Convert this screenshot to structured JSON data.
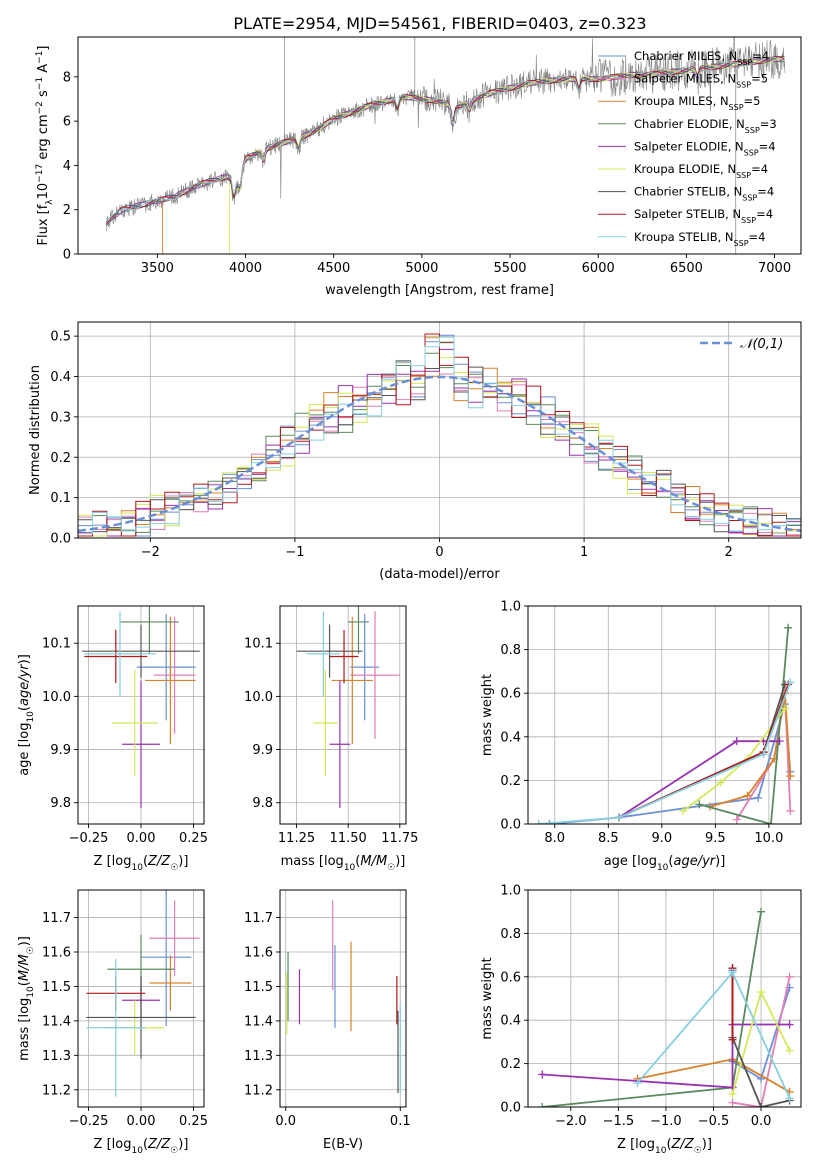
{
  "figure": {
    "title": "PLATE=2954, MJD=54561, FIBERID=0403, z=0.323"
  },
  "models": [
    {
      "name": "Chabrier MILES",
      "nssp": "4",
      "color": "#6b8fd6"
    },
    {
      "name": "Salpeter MILES",
      "nssp": "5",
      "color": "#e17fb4"
    },
    {
      "name": "Kroupa MILES",
      "nssp": "5",
      "color": "#d9822b"
    },
    {
      "name": "Chabrier ELODIE",
      "nssp": "3",
      "color": "#5a8a5e"
    },
    {
      "name": "Salpeter ELODIE",
      "nssp": "4",
      "color": "#9932b0"
    },
    {
      "name": "Kroupa ELODIE",
      "nssp": "4",
      "color": "#d4e85a"
    },
    {
      "name": "Chabrier STELIB",
      "nssp": "4",
      "color": "#555555"
    },
    {
      "name": "Salpeter STELIB",
      "nssp": "4",
      "color": "#b01818"
    },
    {
      "name": "Kroupa STELIB",
      "nssp": "4",
      "color": "#86cfe0"
    }
  ],
  "chart_data": [
    {
      "id": "spectrum",
      "type": "line",
      "xlabel": "wavelength [Angstrom, rest frame]",
      "ylabel": "Flux [f_λ 10^-17 erg cm^-2 s^-1 A^-1]",
      "xlim": [
        3050,
        7150
      ],
      "ylim": [
        0,
        9.8
      ],
      "xticks": [
        3500,
        4000,
        4500,
        5000,
        5500,
        6000,
        6500,
        7000
      ],
      "yticks": [
        0,
        2,
        4,
        6,
        8
      ],
      "grid": false,
      "legend": "top-right",
      "data_color": "#808080",
      "continuum": [
        [
          3210,
          1.4
        ],
        [
          3300,
          2.0
        ],
        [
          3400,
          2.2
        ],
        [
          3500,
          2.4
        ],
        [
          3600,
          2.6
        ],
        [
          3700,
          3.0
        ],
        [
          3800,
          3.3
        ],
        [
          3900,
          3.5
        ],
        [
          3950,
          3.2
        ],
        [
          4000,
          4.3
        ],
        [
          4100,
          4.7
        ],
        [
          4200,
          5.0
        ],
        [
          4300,
          5.2
        ],
        [
          4400,
          5.6
        ],
        [
          4500,
          6.1
        ],
        [
          4600,
          6.4
        ],
        [
          4700,
          6.7
        ],
        [
          4800,
          6.9
        ],
        [
          4900,
          7.1
        ],
        [
          5000,
          7.0
        ],
        [
          5100,
          6.9
        ],
        [
          5200,
          6.6
        ],
        [
          5300,
          7.0
        ],
        [
          5400,
          7.3
        ],
        [
          5500,
          7.5
        ],
        [
          5600,
          7.7
        ],
        [
          5700,
          7.8
        ],
        [
          5800,
          7.9
        ],
        [
          5900,
          7.9
        ],
        [
          6000,
          7.9
        ],
        [
          6100,
          8.0
        ],
        [
          6200,
          8.1
        ],
        [
          6300,
          8.1
        ],
        [
          6400,
          8.2
        ],
        [
          6500,
          8.3
        ],
        [
          6600,
          8.4
        ],
        [
          6700,
          8.5
        ],
        [
          6800,
          8.6
        ],
        [
          6900,
          8.7
        ],
        [
          7000,
          8.8
        ],
        [
          7060,
          8.8
        ]
      ]
    },
    {
      "id": "residuals",
      "type": "histogram",
      "xlabel": "(data-model)/error",
      "ylabel": "Normed distribution",
      "xlim": [
        -2.5,
        2.5
      ],
      "ylim": [
        0,
        0.535
      ],
      "xticks": [
        -2,
        -1,
        0,
        1,
        2
      ],
      "yticks": [
        0.0,
        0.1,
        0.2,
        0.3,
        0.4,
        0.5
      ],
      "grid": true,
      "legend": "top-right",
      "reference_label": "𝒩(0,1)",
      "reference_color": "#6b8fd6",
      "bin_start": -2.5,
      "bin_width": 0.1
    },
    {
      "id": "age-vs-Z",
      "type": "errorbar",
      "xlabel": "Z [log10(Z/Z☉)]",
      "ylabel": "age [log10(age/yr)]",
      "xlim": [
        -0.3,
        0.3
      ],
      "ylim": [
        9.76,
        10.17
      ],
      "xticks": [
        -0.25,
        0.0,
        0.25
      ],
      "yticks": [
        9.8,
        9.9,
        10.0,
        10.1
      ],
      "grid": true,
      "points": [
        {
          "model": 0,
          "x": 0.12,
          "xerr": 0.14,
          "y": 10.055,
          "yerr": 0.1
        },
        {
          "model": 1,
          "x": 0.16,
          "xerr": 0.1,
          "y": 10.04,
          "yerr": 0.11
        },
        {
          "model": 2,
          "x": 0.14,
          "xerr": 0.12,
          "y": 10.03,
          "yerr": 0.12
        },
        {
          "model": 3,
          "x": 0.04,
          "xerr": 0.14,
          "y": 10.14,
          "yerr": 0.06
        },
        {
          "model": 4,
          "x": 0.0,
          "xerr": 0.09,
          "y": 9.91,
          "yerr": 0.12
        },
        {
          "model": 5,
          "x": -0.03,
          "xerr": 0.11,
          "y": 9.95,
          "yerr": 0.1
        },
        {
          "model": 6,
          "x": 0.0,
          "xerr": 0.28,
          "y": 10.085,
          "yerr": 0.05
        },
        {
          "model": 7,
          "x": -0.12,
          "xerr": 0.15,
          "y": 10.075,
          "yerr": 0.05
        },
        {
          "model": 8,
          "x": -0.1,
          "xerr": 0.17,
          "y": 10.08,
          "yerr": 0.08
        }
      ]
    },
    {
      "id": "age-vs-mass",
      "type": "errorbar",
      "xlabel": "mass [log10(M/M☉)]",
      "ylabel": "",
      "xlim": [
        11.17,
        11.78
      ],
      "ylim": [
        9.76,
        10.17
      ],
      "xticks": [
        11.25,
        11.5,
        11.75
      ],
      "yticks": [
        9.8,
        9.9,
        10.0,
        10.1
      ],
      "grid": true,
      "points": [
        {
          "model": 0,
          "x": 11.58,
          "xerr": 0.07,
          "y": 10.055,
          "yerr": 0.1
        },
        {
          "model": 1,
          "x": 11.63,
          "xerr": 0.12,
          "y": 10.04,
          "yerr": 0.12
        },
        {
          "model": 2,
          "x": 11.52,
          "xerr": 0.1,
          "y": 10.03,
          "yerr": 0.12
        },
        {
          "model": 3,
          "x": 11.55,
          "xerr": 0.05,
          "y": 10.14,
          "yerr": 0.06
        },
        {
          "model": 4,
          "x": 11.46,
          "xerr": 0.05,
          "y": 9.91,
          "yerr": 0.12
        },
        {
          "model": 5,
          "x": 11.39,
          "xerr": 0.06,
          "y": 9.95,
          "yerr": 0.1
        },
        {
          "model": 6,
          "x": 11.41,
          "xerr": 0.16,
          "y": 10.085,
          "yerr": 0.05
        },
        {
          "model": 7,
          "x": 11.48,
          "xerr": 0.07,
          "y": 10.075,
          "yerr": 0.05
        },
        {
          "model": 8,
          "x": 11.38,
          "xerr": 0.08,
          "y": 10.08,
          "yerr": 0.08
        }
      ]
    },
    {
      "id": "weight-vs-age",
      "type": "line",
      "xlabel": "age [log10(age/yr)]",
      "ylabel": "mass weight",
      "xlim": [
        7.75,
        10.3
      ],
      "ylim": [
        0,
        1.0
      ],
      "xticks": [
        8.0,
        8.5,
        9.0,
        9.5,
        10.0
      ],
      "yticks": [
        0.0,
        0.2,
        0.4,
        0.6,
        0.8,
        1.0
      ],
      "grid": true,
      "series": [
        {
          "model": 0,
          "points": [
            [
              7.95,
              0.0
            ],
            [
              8.6,
              0.03
            ],
            [
              9.9,
              0.12
            ],
            [
              10.15,
              0.55
            ],
            [
              10.2,
              0.24
            ]
          ]
        },
        {
          "model": 1,
          "points": [
            [
              9.7,
              0.02
            ],
            [
              10.05,
              0.3
            ],
            [
              10.15,
              0.6
            ],
            [
              10.2,
              0.06
            ]
          ]
        },
        {
          "model": 2,
          "points": [
            [
              9.45,
              0.08
            ],
            [
              9.8,
              0.13
            ],
            [
              10.05,
              0.3
            ],
            [
              10.15,
              0.6
            ],
            [
              10.2,
              0.22
            ]
          ]
        },
        {
          "model": 3,
          "points": [
            [
              9.35,
              0.09
            ],
            [
              10.02,
              0.0
            ],
            [
              10.18,
              0.9
            ]
          ]
        },
        {
          "model": 4,
          "points": [
            [
              8.6,
              0.03
            ],
            [
              9.7,
              0.38
            ],
            [
              9.95,
              0.38
            ],
            [
              10.1,
              0.38
            ]
          ]
        },
        {
          "model": 5,
          "points": [
            [
              9.2,
              0.06
            ],
            [
              9.55,
              0.19
            ],
            [
              9.8,
              0.3
            ],
            [
              10.15,
              0.53
            ]
          ]
        },
        {
          "model": 6,
          "points": [
            [
              8.6,
              0.03
            ],
            [
              9.95,
              0.33
            ],
            [
              10.15,
              0.64
            ]
          ]
        },
        {
          "model": 7,
          "points": [
            [
              8.6,
              0.03
            ],
            [
              9.95,
              0.33
            ],
            [
              10.18,
              0.64
            ]
          ]
        },
        {
          "model": 8,
          "points": [
            [
              7.85,
              0.0
            ],
            [
              8.6,
              0.03
            ],
            [
              9.95,
              0.32
            ],
            [
              10.2,
              0.65
            ]
          ]
        }
      ]
    },
    {
      "id": "mass-vs-Z",
      "type": "errorbar",
      "xlabel": "Z [log10(Z/Z☉)]",
      "ylabel": "mass [log10(M/M☉)]",
      "xlim": [
        -0.3,
        0.3
      ],
      "ylim": [
        11.15,
        11.78
      ],
      "xticks": [
        -0.25,
        0.0,
        0.25
      ],
      "yticks": [
        11.2,
        11.3,
        11.4,
        11.5,
        11.6,
        11.7
      ],
      "grid": true,
      "points": [
        {
          "model": 0,
          "x": 0.12,
          "xerr": 0.12,
          "y": 11.585,
          "yerr": 0.2
        },
        {
          "model": 1,
          "x": 0.16,
          "xerr": 0.12,
          "y": 11.64,
          "yerr": 0.11
        },
        {
          "model": 2,
          "x": 0.14,
          "xerr": 0.1,
          "y": 11.51,
          "yerr": 0.08
        },
        {
          "model": 3,
          "x": 0.0,
          "xerr": 0.16,
          "y": 11.55,
          "yerr": 0.1
        },
        {
          "model": 4,
          "x": 0.0,
          "xerr": 0.09,
          "y": 11.46,
          "yerr": 0.05
        },
        {
          "model": 5,
          "x": -0.03,
          "xerr": 0.14,
          "y": 11.38,
          "yerr": 0.08
        },
        {
          "model": 6,
          "x": 0.0,
          "xerr": 0.26,
          "y": 11.41,
          "yerr": 0.12
        },
        {
          "model": 7,
          "x": -0.12,
          "xerr": 0.14,
          "y": 11.48,
          "yerr": 0.05
        },
        {
          "model": 8,
          "x": -0.12,
          "xerr": 0.14,
          "y": 11.38,
          "yerr": 0.2
        }
      ]
    },
    {
      "id": "mass-vs-ebv",
      "type": "errorbar",
      "xlabel": "E(B-V)",
      "ylabel": "",
      "xlim": [
        -0.005,
        0.105
      ],
      "ylim": [
        11.15,
        11.78
      ],
      "xticks": [
        0.0,
        0.1
      ],
      "yticks": [
        11.2,
        11.3,
        11.4,
        11.5,
        11.6,
        11.7
      ],
      "grid": true,
      "points": [
        {
          "model": 0,
          "x": 0.043,
          "xerr": 0,
          "y": 11.5,
          "yerr": 0.12
        },
        {
          "model": 1,
          "x": 0.041,
          "xerr": 0,
          "y": 11.62,
          "yerr": 0.13
        },
        {
          "model": 2,
          "x": 0.057,
          "xerr": 0,
          "y": 11.5,
          "yerr": 0.13
        },
        {
          "model": 3,
          "x": 0.002,
          "xerr": 0,
          "y": 11.5,
          "yerr": 0.1
        },
        {
          "model": 4,
          "x": 0.012,
          "xerr": 0,
          "y": 11.47,
          "yerr": 0.08
        },
        {
          "model": 5,
          "x": 0.001,
          "xerr": 0,
          "y": 11.45,
          "yerr": 0.09
        },
        {
          "model": 6,
          "x": 0.098,
          "xerr": 0,
          "y": 11.31,
          "yerr": 0.12
        },
        {
          "model": 7,
          "x": 0.097,
          "xerr": 0,
          "y": 11.46,
          "yerr": 0.07
        },
        {
          "model": 8,
          "x": 0.1,
          "xerr": 0,
          "y": 11.32,
          "yerr": 0.13
        }
      ]
    },
    {
      "id": "weight-vs-Z",
      "type": "line",
      "xlabel": "Z [log10(Z/Z☉)]",
      "ylabel": "mass weight",
      "xlim": [
        -2.45,
        0.42
      ],
      "ylim": [
        0,
        1.0
      ],
      "xticks": [
        -2.0,
        -1.5,
        -1.0,
        -0.5,
        0.0
      ],
      "yticks": [
        0.0,
        0.2,
        0.4,
        0.6,
        0.8,
        1.0
      ],
      "grid": true,
      "series": [
        {
          "model": 0,
          "points": [
            [
              -0.3,
              0.63
            ],
            [
              -0.3,
              0.21
            ],
            [
              0.0,
              0.13
            ],
            [
              0.3,
              0.55
            ]
          ]
        },
        {
          "model": 1,
          "points": [
            [
              -0.3,
              0.02
            ],
            [
              0.0,
              0.0
            ],
            [
              0.3,
              0.6
            ]
          ]
        },
        {
          "model": 2,
          "points": [
            [
              -1.3,
              0.13
            ],
            [
              -0.3,
              0.22
            ],
            [
              0.3,
              0.07
            ]
          ]
        },
        {
          "model": 3,
          "points": [
            [
              -2.3,
              0.0
            ],
            [
              -0.3,
              0.09
            ],
            [
              0.0,
              0.9
            ]
          ]
        },
        {
          "model": 4,
          "points": [
            [
              -2.3,
              0.15
            ],
            [
              -0.3,
              0.09
            ],
            [
              -0.3,
              0.38
            ],
            [
              0.3,
              0.38
            ]
          ]
        },
        {
          "model": 5,
          "points": [
            [
              -0.3,
              0.06
            ],
            [
              0.0,
              0.53
            ],
            [
              0.3,
              0.26
            ]
          ]
        },
        {
          "model": 6,
          "points": [
            [
              -0.3,
              0.64
            ],
            [
              -0.3,
              0.32
            ],
            [
              0.0,
              0.0
            ],
            [
              0.3,
              0.03
            ]
          ]
        },
        {
          "model": 7,
          "points": [
            [
              -0.3,
              0.64
            ],
            [
              -0.3,
              0.31
            ]
          ]
        },
        {
          "model": 8,
          "points": [
            [
              -1.3,
              0.11
            ],
            [
              -0.3,
              0.62
            ],
            [
              0.3,
              0.04
            ]
          ]
        }
      ]
    }
  ]
}
